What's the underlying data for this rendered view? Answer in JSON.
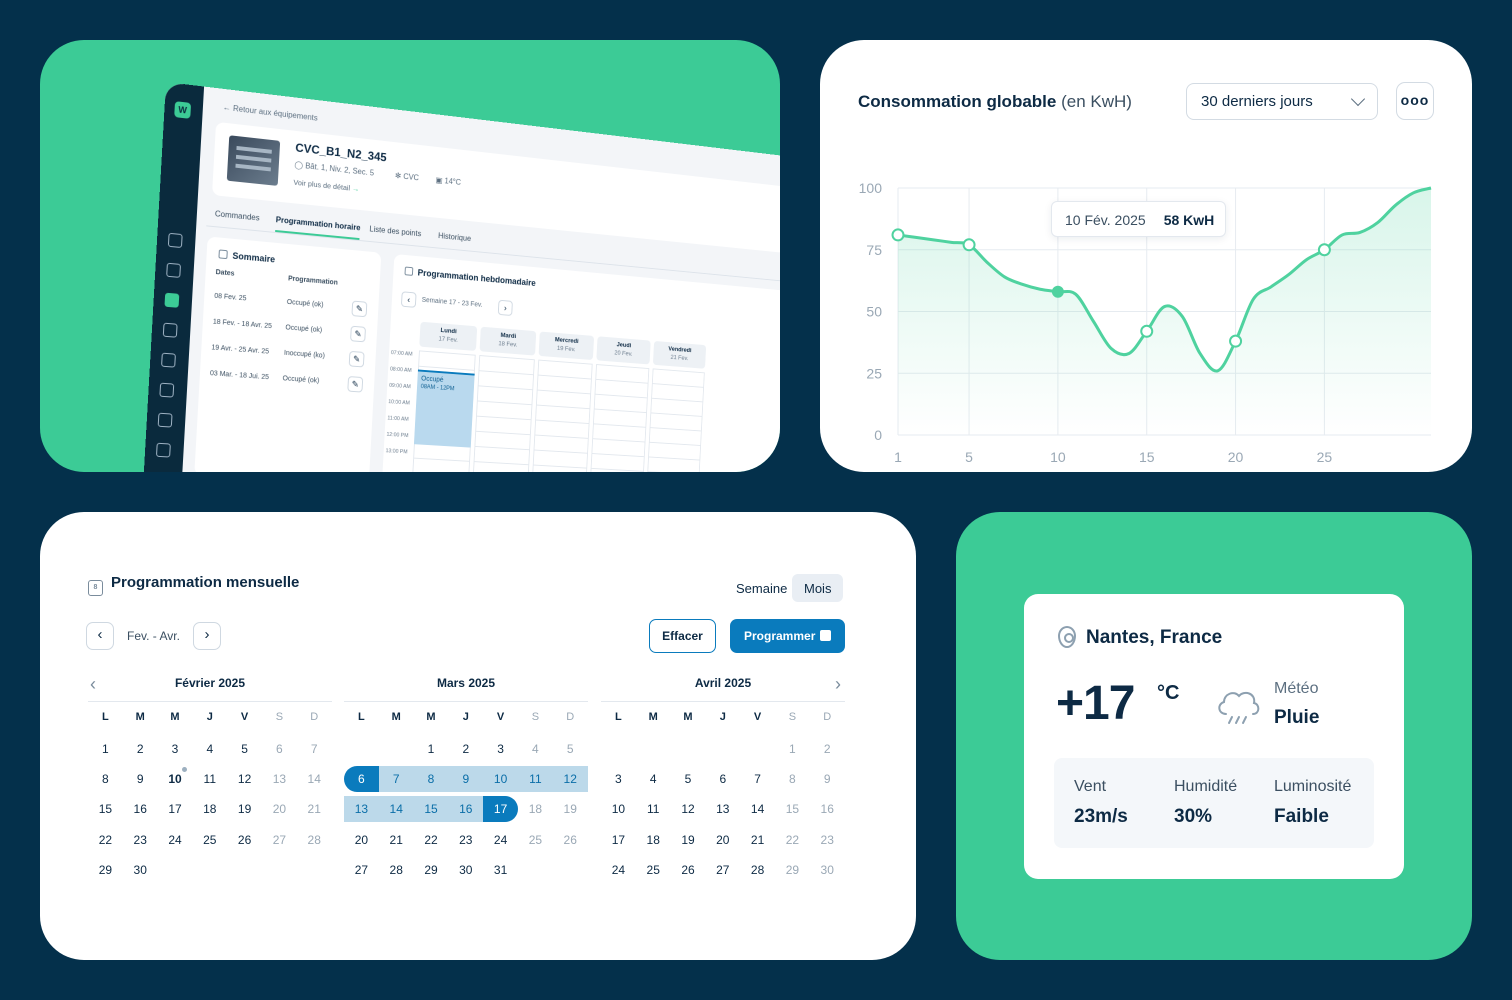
{
  "app": {
    "back": "Retour aux équipements",
    "equipment": {
      "name": "CVC_B1_N2_345",
      "location": "Bât. 1, Niv. 2, Sec. 5",
      "type": "CVC",
      "temp": "14°C",
      "more": "Voir plus de détail"
    },
    "tabs": [
      "Commandes",
      "Programmation horaire",
      "Liste des points",
      "Historique"
    ],
    "summary": {
      "title": "Sommaire",
      "col_dates": "Dates",
      "col_prog": "Programmation",
      "rows": [
        {
          "date": "08 Fev. 25",
          "prog": "Occupé (ok)"
        },
        {
          "date": "18 Fev. - 18 Avr. 25",
          "prog": "Occupé (ok)"
        },
        {
          "date": "19 Avr. - 25 Avr. 25",
          "prog": "Inoccupé (ko)"
        },
        {
          "date": "03 Mar. - 18 Jui. 25",
          "prog": "Occupé (ok)"
        }
      ]
    },
    "weekly": {
      "title": "Programmation hebdomadaire",
      "week": "Semaine 17 - 23 Fev.",
      "days": [
        {
          "name": "Lundi",
          "date": "17 Fev."
        },
        {
          "name": "Mardi",
          "date": "18 Fev."
        },
        {
          "name": "Mercredi",
          "date": "19 Fev."
        },
        {
          "name": "Jeudi",
          "date": "20 Fev."
        },
        {
          "name": "Vendredi",
          "date": "21 Fev."
        }
      ],
      "hours": [
        "07:00 AM",
        "08:00 AM",
        "09:00 AM",
        "10:00 AM",
        "11:00 AM",
        "12:00 PM",
        "13:00 PM"
      ],
      "event": {
        "label": "Occupé",
        "time": "08AM - 12PM"
      }
    }
  },
  "consumption": {
    "title": "Consommation globable",
    "unit": "(en KwH)",
    "range": "30 derniers jours",
    "more": "ooo",
    "tooltip": {
      "date": "10 Fév. 2025",
      "value": "58 KwH"
    }
  },
  "chart_data": {
    "type": "line",
    "title": "Consommation globable (en KwH)",
    "x": [
      1,
      2,
      3,
      4,
      5,
      6,
      7,
      8,
      9,
      10,
      11,
      12,
      13,
      14,
      15,
      16,
      17,
      18,
      19,
      20,
      21,
      22,
      23,
      24,
      25,
      26,
      27,
      28,
      29,
      30,
      31
    ],
    "y": [
      81,
      80,
      79,
      78,
      77,
      70,
      64,
      61,
      59,
      58,
      57,
      46,
      35,
      33,
      42,
      52,
      48,
      33,
      26,
      38,
      55,
      60,
      65,
      71,
      75,
      81,
      82,
      86,
      93,
      98,
      100
    ],
    "markers": [
      1,
      5,
      10,
      15,
      20,
      25
    ],
    "highlight": 10,
    "xticks": [
      1,
      5,
      10,
      15,
      20,
      25
    ],
    "yticks": [
      0,
      25,
      50,
      75,
      100
    ],
    "xlim": [
      1,
      31
    ],
    "ylim": [
      0,
      100
    ],
    "colors": {
      "line": "#4fd29f",
      "fill": "#e6f8f0",
      "grid": "#e6ebf0",
      "tick": "#9aa8b5"
    }
  },
  "calendar": {
    "title": "Programmation mensuelle",
    "icon_day": "8",
    "views": [
      "Semaine",
      "Mois"
    ],
    "range": "Fev. - Avr.",
    "clear": "Effacer",
    "program": "Programmer",
    "dows": [
      "L",
      "M",
      "M",
      "J",
      "V",
      "S",
      "D"
    ],
    "months": [
      {
        "name": "Février 2025",
        "offset": 0,
        "days": 30,
        "today": 10,
        "sel": []
      },
      {
        "name": "Mars 2025",
        "offset": 2,
        "days": 31,
        "today": 0,
        "sel": [
          6,
          7,
          8,
          9,
          10,
          11,
          12,
          13,
          14,
          15,
          16,
          17
        ]
      },
      {
        "name": "Avril 2025",
        "offset": 5,
        "days": 30,
        "today": 0,
        "sel": []
      }
    ]
  },
  "weather": {
    "city": "Nantes, France",
    "temp": "+17",
    "unit": "°C",
    "label": "Météo",
    "condition": "Pluie",
    "stats": [
      {
        "k": "Vent",
        "v": "23m/s"
      },
      {
        "k": "Humidité",
        "v": "30%"
      },
      {
        "k": "Luminosité",
        "v": "Faible"
      }
    ]
  }
}
